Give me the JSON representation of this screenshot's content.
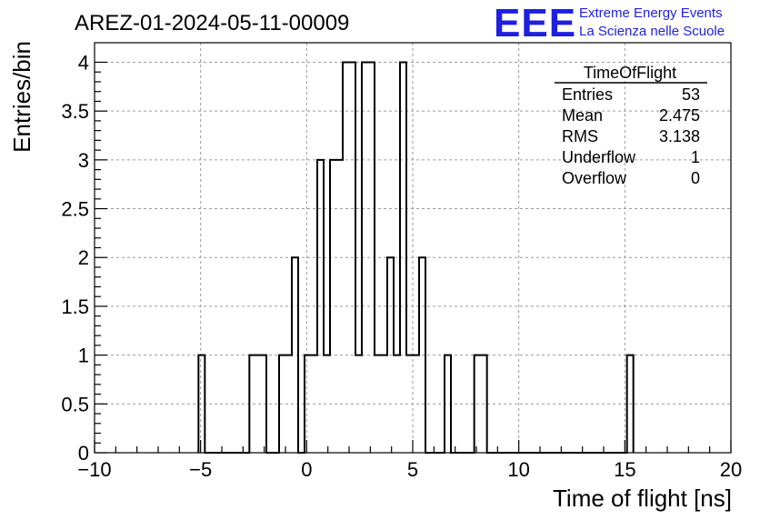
{
  "header": {
    "run_title": "AREZ-01-2024-05-11-00009",
    "logo_text": "EEE",
    "logo_line1": "Extreme Energy Events",
    "logo_line2": "La Scienza nelle Scuole",
    "logo_color": "#1f1fe0"
  },
  "stats": {
    "name": "TimeOfFlight",
    "rows": [
      {
        "label": "Entries",
        "value": "53"
      },
      {
        "label": "Mean",
        "value": "2.475"
      },
      {
        "label": "RMS",
        "value": "3.138"
      },
      {
        "label": "Underflow",
        "value": "1"
      },
      {
        "label": "Overflow",
        "value": "0"
      }
    ]
  },
  "chart_data": {
    "type": "histogram",
    "xlabel": "Time of flight [ns]",
    "ylabel": "Entries/bin",
    "xlim": [
      -10,
      20
    ],
    "ylim": [
      0,
      4.2
    ],
    "x_ticks": [
      -10,
      -5,
      0,
      5,
      10,
      15,
      20
    ],
    "y_ticks": [
      0,
      0.5,
      1,
      1.5,
      2,
      2.5,
      3,
      3.5,
      4
    ],
    "grid": true,
    "line_color": "#000000",
    "bins": [
      {
        "x0": -5.1,
        "x1": -4.8,
        "count": 1
      },
      {
        "x0": -2.7,
        "x1": -1.9,
        "count": 1
      },
      {
        "x0": -1.3,
        "x1": -0.7,
        "count": 1
      },
      {
        "x0": -0.7,
        "x1": -0.4,
        "count": 2
      },
      {
        "x0": -0.1,
        "x1": 0.5,
        "count": 1
      },
      {
        "x0": 0.5,
        "x1": 0.8,
        "count": 3
      },
      {
        "x0": 0.8,
        "x1": 1.1,
        "count": 1
      },
      {
        "x0": 1.1,
        "x1": 1.7,
        "count": 3
      },
      {
        "x0": 1.7,
        "x1": 2.3,
        "count": 4
      },
      {
        "x0": 2.3,
        "x1": 2.6,
        "count": 1
      },
      {
        "x0": 2.6,
        "x1": 3.2,
        "count": 4
      },
      {
        "x0": 3.2,
        "x1": 3.8,
        "count": 1
      },
      {
        "x0": 3.8,
        "x1": 4.1,
        "count": 2
      },
      {
        "x0": 4.1,
        "x1": 4.4,
        "count": 1
      },
      {
        "x0": 4.4,
        "x1": 4.7,
        "count": 4
      },
      {
        "x0": 4.7,
        "x1": 5.3,
        "count": 1
      },
      {
        "x0": 5.3,
        "x1": 5.6,
        "count": 2
      },
      {
        "x0": 6.5,
        "x1": 6.8,
        "count": 1
      },
      {
        "x0": 7.9,
        "x1": 8.5,
        "count": 1
      },
      {
        "x0": 15.1,
        "x1": 15.4,
        "count": 1
      }
    ]
  }
}
